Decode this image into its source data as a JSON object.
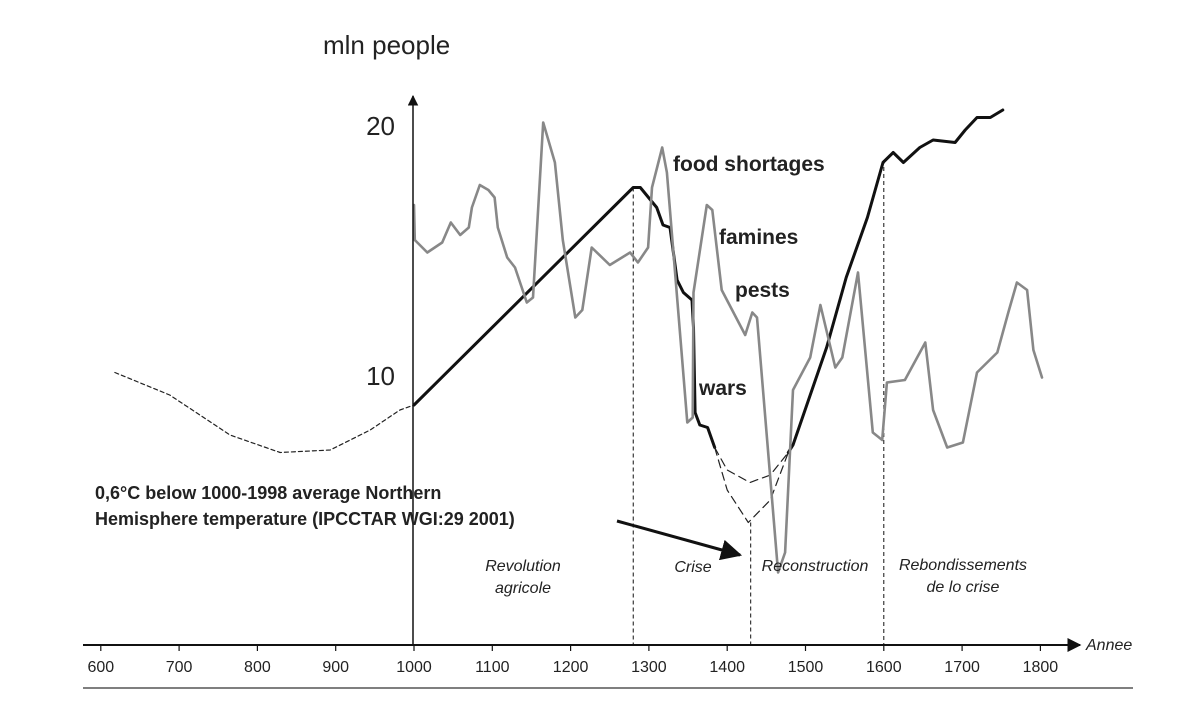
{
  "chart_data": {
    "type": "line",
    "title": "",
    "ylabel": "mln people",
    "xlabel": "Annee",
    "xlim": [
      600,
      1800
    ],
    "ylim": [
      0,
      20
    ],
    "x_ticks": [
      600,
      700,
      800,
      900,
      1000,
      1100,
      1200,
      1300,
      1400,
      1500,
      1600,
      1700,
      1800
    ],
    "y_ticks": [
      10,
      20
    ],
    "grid": false,
    "series": [
      {
        "name": "population (estimated, before 1000)",
        "style": "dashed",
        "color": "#222222",
        "points": [
          [
            618,
            10.1
          ],
          [
            688,
            9.2
          ],
          [
            765,
            7.6
          ],
          [
            829,
            6.9
          ],
          [
            893,
            7.0
          ],
          [
            944,
            7.8
          ],
          [
            982,
            8.6
          ],
          [
            1000,
            8.8
          ]
        ]
      },
      {
        "name": "population (before crisis)",
        "style": "solid",
        "color": "#111111",
        "points": [
          [
            1000,
            8.8
          ],
          [
            1280,
            17.5
          ],
          [
            1289,
            17.5
          ],
          [
            1310,
            16.7
          ],
          [
            1318,
            16.0
          ],
          [
            1327,
            15.9
          ],
          [
            1336,
            13.8
          ],
          [
            1344,
            13.3
          ],
          [
            1355,
            13.0
          ],
          [
            1357,
            11.9
          ],
          [
            1359,
            8.5
          ],
          [
            1365,
            8.0
          ],
          [
            1375,
            7.9
          ],
          [
            1384,
            7.1
          ]
        ]
      },
      {
        "name": "population (crisis scenario, upper)",
        "style": "dashed",
        "color": "#222222",
        "points": [
          [
            1384,
            7.1
          ],
          [
            1400,
            6.2
          ],
          [
            1429,
            5.7
          ],
          [
            1455,
            6.0
          ],
          [
            1478,
            6.9
          ]
        ]
      },
      {
        "name": "population (crisis scenario, lower)",
        "style": "dashed",
        "color": "#222222",
        "points": [
          [
            1384,
            7.1
          ],
          [
            1400,
            5.4
          ],
          [
            1427,
            4.1
          ],
          [
            1455,
            5.0
          ],
          [
            1478,
            6.9
          ]
        ]
      },
      {
        "name": "population (recovery)",
        "style": "solid",
        "color": "#111111",
        "points": [
          [
            1478,
            6.9
          ],
          [
            1484,
            7.2
          ],
          [
            1527,
            11.1
          ],
          [
            1552,
            13.9
          ],
          [
            1579,
            16.3
          ],
          [
            1599,
            18.5
          ],
          [
            1612,
            18.9
          ],
          [
            1625,
            18.5
          ],
          [
            1646,
            19.1
          ],
          [
            1663,
            19.4
          ],
          [
            1691,
            19.3
          ],
          [
            1704,
            19.8
          ],
          [
            1719,
            20.3
          ],
          [
            1736,
            20.3
          ],
          [
            1752,
            20.6
          ]
        ]
      },
      {
        "name": "temperature",
        "style": "solid",
        "color": "#888888",
        "points": [
          [
            1000,
            16.8
          ],
          [
            1001,
            15.4
          ],
          [
            1017,
            14.9
          ],
          [
            1036,
            15.3
          ],
          [
            1047,
            16.1
          ],
          [
            1059,
            15.6
          ],
          [
            1070,
            15.9
          ],
          [
            1074,
            16.7
          ],
          [
            1084,
            17.6
          ],
          [
            1095,
            17.4
          ],
          [
            1103,
            17.1
          ],
          [
            1107,
            15.9
          ],
          [
            1119,
            14.7
          ],
          [
            1129,
            14.3
          ],
          [
            1144,
            12.9
          ],
          [
            1152,
            13.1
          ],
          [
            1165,
            20.1
          ],
          [
            1180,
            18.5
          ],
          [
            1190,
            15.4
          ],
          [
            1206,
            12.3
          ],
          [
            1215,
            12.6
          ],
          [
            1227,
            15.1
          ],
          [
            1250,
            14.4
          ],
          [
            1276,
            14.9
          ],
          [
            1286,
            14.5
          ],
          [
            1299,
            15.1
          ],
          [
            1304,
            17.5
          ],
          [
            1317,
            19.1
          ],
          [
            1323,
            18.1
          ],
          [
            1349,
            8.1
          ],
          [
            1356,
            8.3
          ],
          [
            1357,
            13.3
          ],
          [
            1374,
            16.8
          ],
          [
            1381,
            16.6
          ],
          [
            1393,
            13.4
          ],
          [
            1423,
            11.6
          ],
          [
            1432,
            12.5
          ],
          [
            1438,
            12.3
          ],
          [
            1465,
            2.1
          ],
          [
            1474,
            2.9
          ],
          [
            1484,
            9.4
          ],
          [
            1506,
            10.7
          ],
          [
            1519,
            12.8
          ],
          [
            1538,
            10.3
          ],
          [
            1547,
            10.7
          ],
          [
            1567,
            14.1
          ],
          [
            1586,
            7.7
          ],
          [
            1598,
            7.4
          ],
          [
            1604,
            9.7
          ],
          [
            1627,
            9.8
          ],
          [
            1653,
            11.3
          ],
          [
            1663,
            8.6
          ],
          [
            1681,
            7.1
          ],
          [
            1701,
            7.3
          ],
          [
            1719,
            10.1
          ],
          [
            1745,
            10.9
          ],
          [
            1759,
            12.5
          ],
          [
            1770,
            13.7
          ],
          [
            1783,
            13.4
          ],
          [
            1791,
            11.0
          ],
          [
            1802,
            9.9
          ]
        ]
      }
    ],
    "period_markers": [
      {
        "x": 1280,
        "from_value": 17.5
      },
      {
        "x": 1430,
        "from_value": 4.1
      },
      {
        "x": 1600,
        "from_value": 18.6
      }
    ],
    "annotations": {
      "food_shortages": "food shortages",
      "famines": "famines",
      "pests": "pests",
      "wars": "wars",
      "note_line1": "0,6°C below 1000-1998 average Northern",
      "note_line2": "Hemisphere temperature (IPCCTAR WGI:29 2001)"
    },
    "periods": {
      "revolution_1": "Revolution",
      "revolution_2": "agricole",
      "crise": "Crise",
      "reconstruction": "Reconstruction",
      "rebond_1": "Rebondissements",
      "rebond_2": "de lo crise"
    }
  }
}
